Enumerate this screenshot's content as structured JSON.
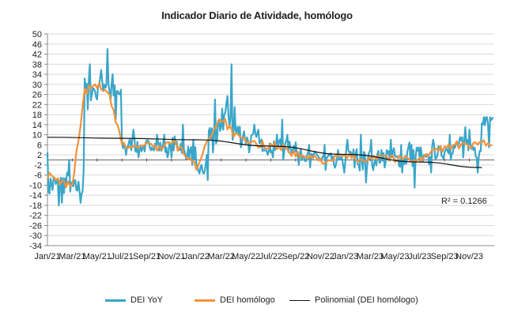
{
  "chart_data": {
    "type": "line",
    "title": "Indicador Diario de Atividade, homólogo",
    "xlabel": "",
    "ylabel": "",
    "ylim": [
      -34,
      50
    ],
    "yticks": [
      50,
      46,
      42,
      38,
      34,
      30,
      26,
      22,
      18,
      14,
      10,
      6,
      2,
      -2,
      -6,
      -10,
      -14,
      -18,
      -22,
      -26,
      -30,
      -34
    ],
    "x_tick_labels": [
      "Jan/21",
      "Mar/21",
      "May/21",
      "Jul/21",
      "Sep/21",
      "Nov/21",
      "Jan/22",
      "Mar/22",
      "May/22",
      "Jul/22",
      "Sep/22",
      "Nov/22",
      "Jan/23",
      "Mar/23",
      "May/23",
      "Jul/23",
      "Sep/23",
      "Nov/23"
    ],
    "grid": "horizontal",
    "legend_position": "bottom",
    "annotation": "R² = 0.1266",
    "series": [
      {
        "name": "DEI YoY",
        "color": "#3aa6c9",
        "x": [
          "Jan/21",
          "Feb/21",
          "Mar/21",
          "Apr/21",
          "May/21",
          "Jun/21",
          "Jul/21",
          "Aug/21",
          "Sep/21",
          "Oct/21",
          "Nov/21",
          "Dec/21",
          "Jan/22",
          "Feb/22",
          "Mar/22",
          "Apr/22",
          "May/22",
          "Jun/22",
          "Jul/22",
          "Aug/22",
          "Sep/22",
          "Oct/22",
          "Nov/22",
          "Dec/22",
          "Jan/23",
          "Feb/23",
          "Mar/23",
          "Apr/23",
          "May/23",
          "Jun/23",
          "Jul/23",
          "Aug/23",
          "Sep/23",
          "Oct/23",
          "Nov/23",
          "Dec/23"
        ],
        "values": [
          -10,
          -9,
          -11,
          28,
          31,
          26,
          6,
          5,
          6,
          5,
          6,
          3,
          -4,
          10,
          18,
          11,
          8,
          6,
          6,
          5,
          2,
          1,
          0,
          -1,
          2,
          -1,
          1,
          2,
          0,
          2,
          0,
          3,
          5,
          6,
          5,
          17
        ],
        "range_low": [
          -18,
          -17,
          -17,
          20,
          24,
          16,
          2,
          1,
          2,
          1,
          1,
          -2,
          -8,
          3,
          8,
          5,
          3,
          2,
          1,
          0,
          -2,
          -3,
          -4,
          -5,
          -3,
          -9,
          -4,
          -3,
          -5,
          -11,
          -5,
          -2,
          0,
          1,
          -5,
          5
        ],
        "range_high": [
          3,
          0,
          -4,
          38,
          44,
          34,
          12,
          9,
          10,
          10,
          14,
          8,
          2,
          24,
          38,
          21,
          14,
          12,
          16,
          10,
          7,
          6,
          6,
          4,
          8,
          10,
          8,
          8,
          6,
          7,
          5,
          8,
          10,
          13,
          12,
          17
        ]
      },
      {
        "name": "DEI homólogo",
        "color": "#f5923a",
        "x": [
          "Jan/21",
          "Feb/21",
          "Mar/21",
          "Apr/21",
          "May/21",
          "Jun/21",
          "Jul/21",
          "Aug/21",
          "Sep/21",
          "Oct/21",
          "Nov/21",
          "Dec/21",
          "Jan/22",
          "Feb/22",
          "Mar/22",
          "Apr/22",
          "May/22",
          "Jun/22",
          "Jul/22",
          "Aug/22",
          "Sep/22",
          "Oct/22",
          "Nov/22",
          "Dec/22",
          "Jan/23",
          "Feb/23",
          "Mar/23",
          "Apr/23",
          "May/23",
          "Jun/23",
          "Jul/23",
          "Aug/23",
          "Sep/23",
          "Oct/23",
          "Nov/23",
          "Dec/23"
        ],
        "values": [
          -6,
          -9,
          -10,
          27,
          30,
          25,
          6,
          5,
          6,
          5,
          7,
          3,
          -3,
          9,
          17,
          10,
          7,
          6,
          6,
          5,
          2,
          1,
          0,
          0,
          2,
          0,
          1,
          2,
          0,
          1,
          0,
          3,
          5,
          6,
          5,
          7
        ]
      },
      {
        "name": "Polinomial (DEI homólogo)",
        "color": "#111111",
        "x": [
          "Jan/21",
          "Jul/21",
          "Jan/22",
          "Jul/22",
          "Jan/23",
          "Jul/23",
          "Dec/23"
        ],
        "values": [
          9,
          8.6,
          8,
          5.5,
          2.2,
          -0.8,
          -3
        ]
      }
    ]
  }
}
